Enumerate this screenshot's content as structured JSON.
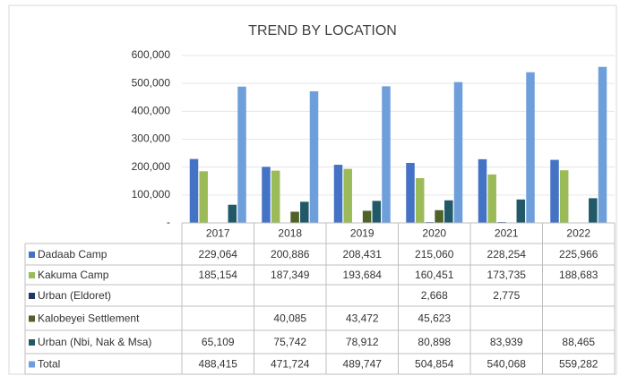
{
  "chart_data": {
    "type": "bar",
    "title": "TREND BY  LOCATION",
    "categories": [
      "2017",
      "2018",
      "2019",
      "2020",
      "2021",
      "2022"
    ],
    "series": [
      {
        "name": "Dadaab Camp",
        "color": "#4472c4",
        "values": [
          229064,
          200886,
          208431,
          215060,
          228254,
          225966
        ],
        "value_labels": [
          "229,064",
          "200,886",
          "208,431",
          "215,060",
          "228,254",
          "225,966"
        ]
      },
      {
        "name": "Kakuma Camp",
        "color": "#9bbb59",
        "values": [
          185154,
          187349,
          193684,
          160451,
          173735,
          188683
        ],
        "value_labels": [
          "185,154",
          "187,349",
          "193,684",
          "160,451",
          "173,735",
          "188,683"
        ]
      },
      {
        "name": "Urban (Eldoret)",
        "color": "#1f3864",
        "values": [
          null,
          null,
          null,
          2668,
          2775,
          null
        ],
        "value_labels": [
          null,
          null,
          null,
          "2,668",
          "2,775",
          null
        ]
      },
      {
        "name": "Kalobeyei Settlement",
        "color": "#4f6228",
        "values": [
          null,
          40085,
          43472,
          45623,
          null,
          null
        ],
        "value_labels": [
          null,
          "40,085",
          "43,472",
          "45,623",
          null,
          null
        ]
      },
      {
        "name": "Urban (Nbi, Nak & Msa)",
        "color": "#215968",
        "values": [
          65109,
          75742,
          78912,
          80898,
          83939,
          88465
        ],
        "value_labels": [
          "65,109",
          "75,742",
          "78,912",
          "80,898",
          "83,939",
          "88,465"
        ]
      },
      {
        "name": "Total",
        "color": "#6f9fdb",
        "values": [
          488415,
          471724,
          489747,
          504854,
          540068,
          559282
        ],
        "value_labels": [
          "488,415",
          "471,724",
          "489,747",
          "504,854",
          "540,068",
          "559,282"
        ]
      }
    ],
    "ylim": [
      0,
      600000
    ],
    "yticks": [
      {
        "value": 0,
        "label": "-"
      },
      {
        "value": 100000,
        "label": "100,000"
      },
      {
        "value": 200000,
        "label": "200,000"
      },
      {
        "value": 300000,
        "label": "300,000"
      },
      {
        "value": 400000,
        "label": "400,000"
      },
      {
        "value": 500000,
        "label": "500,000"
      },
      {
        "value": 600000,
        "label": "600,000"
      }
    ],
    "grid": true
  }
}
